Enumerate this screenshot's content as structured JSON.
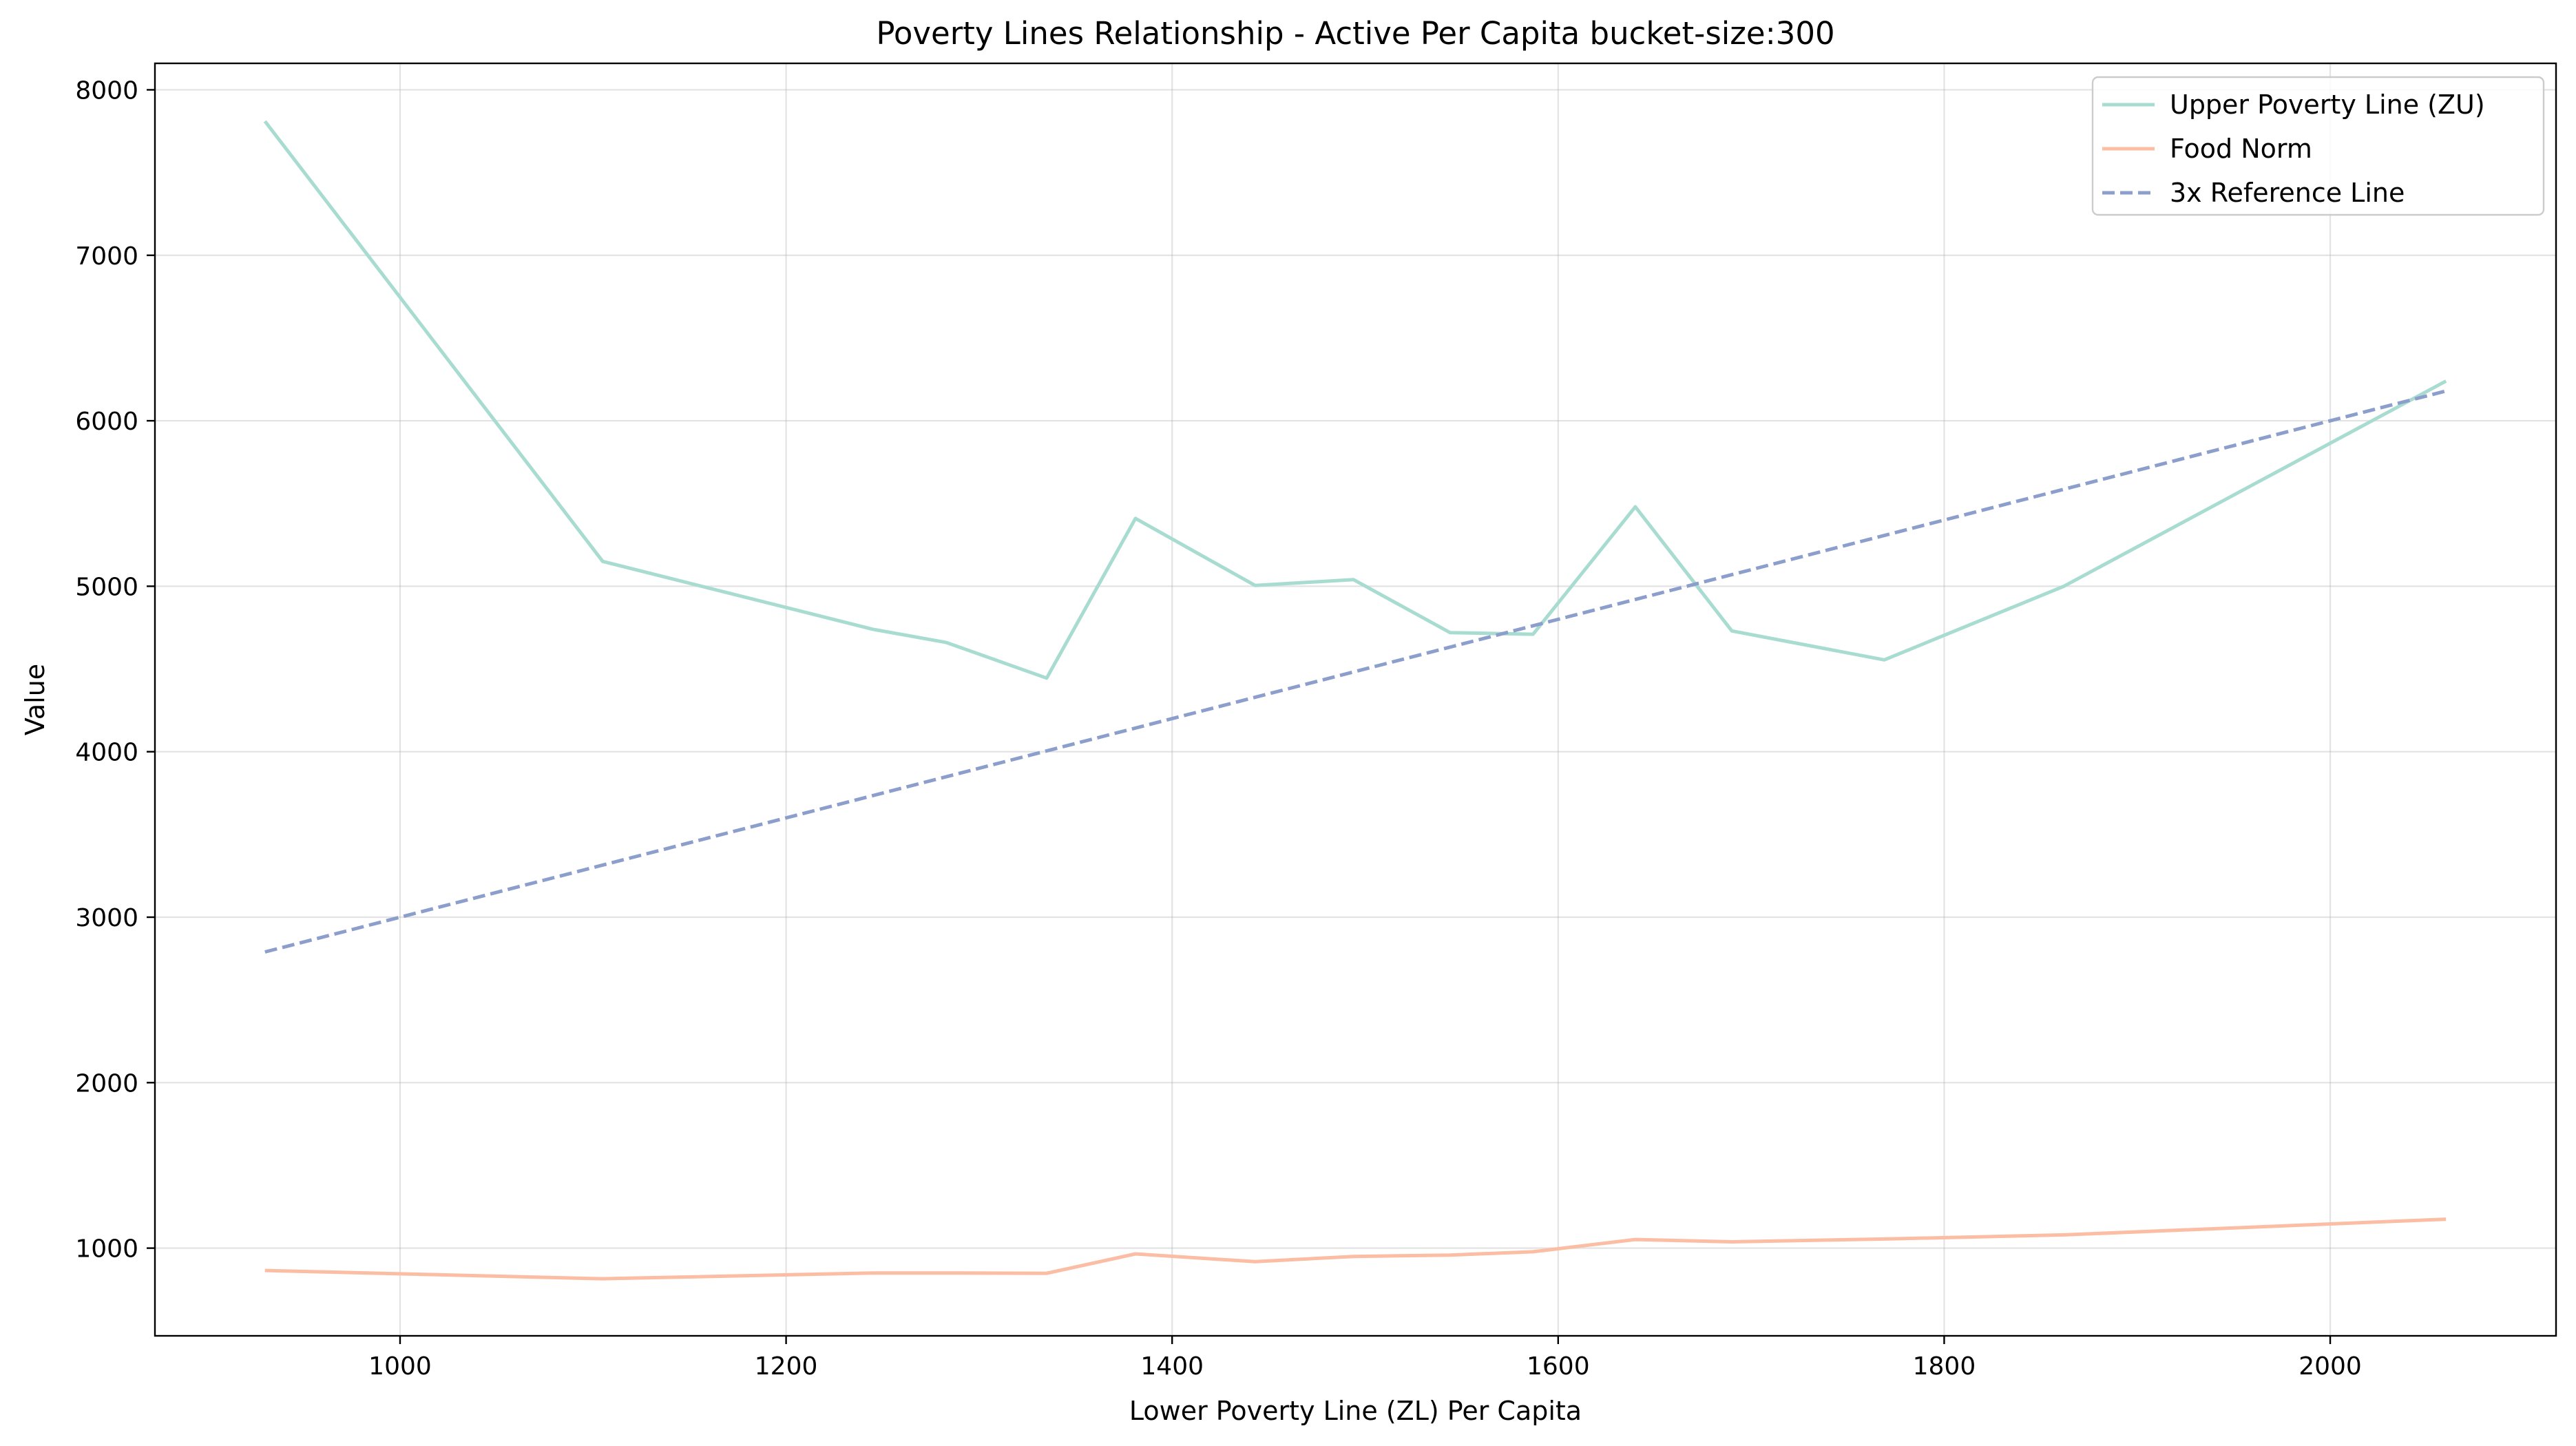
{
  "chart_data": {
    "type": "line",
    "title": "Poverty Lines Relationship - Active Per Capita bucket-size:300",
    "xlabel": "Lower Poverty Line (ZL) Per Capita",
    "ylabel": "Value",
    "xlim": [
      873,
      2117
    ],
    "ylim": [
      470,
      8160
    ],
    "xticks": [
      1000,
      1200,
      1400,
      1600,
      1800,
      2000
    ],
    "yticks": [
      1000,
      2000,
      3000,
      4000,
      5000,
      6000,
      7000,
      8000
    ],
    "grid": true,
    "legend_position": "top-right",
    "series": [
      {
        "name": "Upper Poverty Line (ZU)",
        "color": "#a8dcd0",
        "dash": "solid",
        "x": [
          930,
          1105,
          1245,
          1283,
          1335,
          1381,
          1443,
          1494,
          1544,
          1587,
          1640,
          1690,
          1769,
          1862,
          2060
        ],
        "y": [
          7810,
          5150,
          4740,
          4660,
          4445,
          5410,
          5005,
          5040,
          4720,
          4710,
          5480,
          4730,
          4555,
          5000,
          6240
        ]
      },
      {
        "name": "Food Norm",
        "color": "#fbbda3",
        "dash": "solid",
        "x": [
          930,
          1105,
          1245,
          1283,
          1335,
          1381,
          1443,
          1494,
          1544,
          1587,
          1640,
          1690,
          1769,
          1862,
          2060
        ],
        "y": [
          865,
          815,
          850,
          850,
          848,
          965,
          918,
          950,
          958,
          978,
          1052,
          1038,
          1055,
          1080,
          1175
        ]
      },
      {
        "name": "3x Reference Line",
        "color": "#8c9ecb",
        "dash": "dashed",
        "x": [
          930,
          2060
        ],
        "y": [
          2790,
          6180
        ]
      }
    ]
  }
}
